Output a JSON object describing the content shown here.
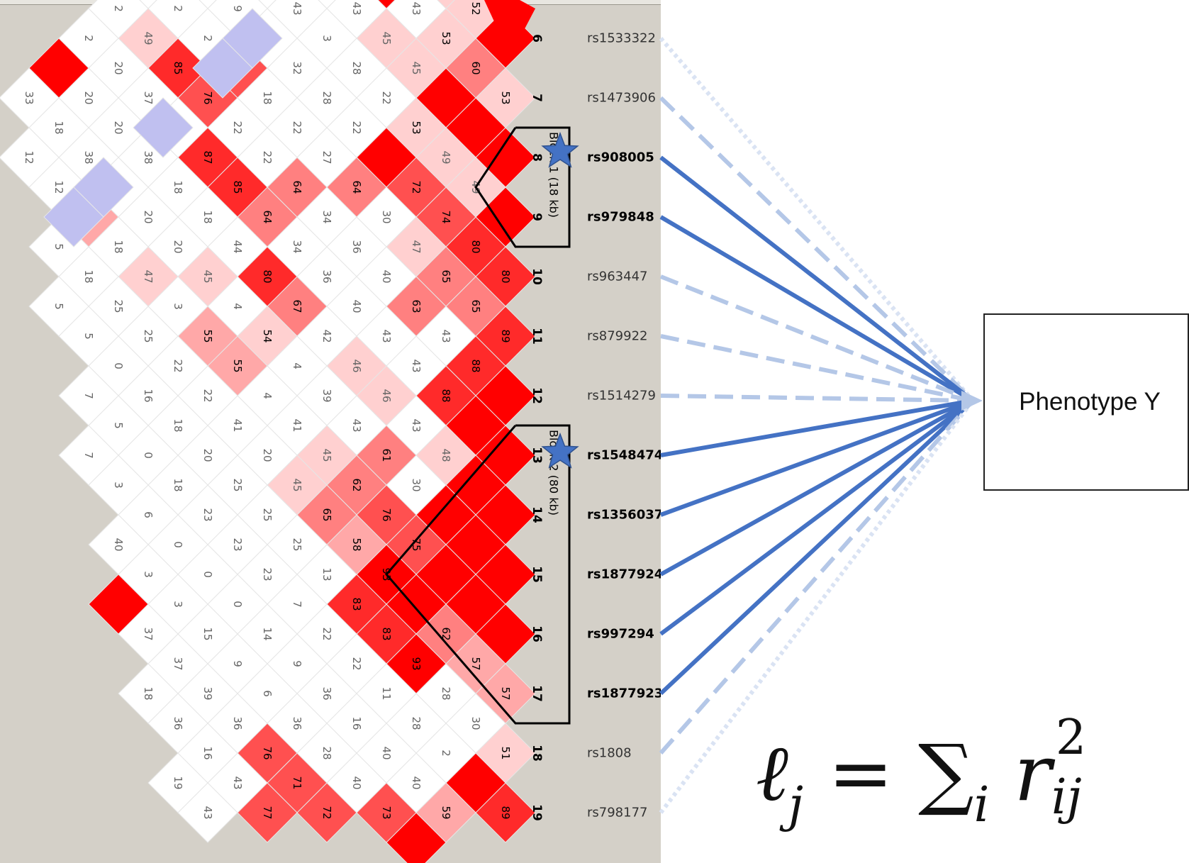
{
  "colors": {
    "strong_ld": "#ff0000",
    "low_ld": "#ffffff",
    "background": "#d4d0c8",
    "lavender": "#c0c0f0",
    "solid_line": "#4472c4",
    "light_line": "#b4c7e7",
    "lighter_line": "#dae3f3",
    "star": "#4472c4"
  },
  "phenotype": {
    "label": "Phenotype Y"
  },
  "formula": {
    "lhs": "ℓ",
    "lhs_sub": "j",
    "equals": "=",
    "sum": "∑",
    "sum_sub": "i",
    "r": "r",
    "r_sup": "2",
    "r_sub": "ij"
  },
  "blocks": [
    {
      "label": "Block 1 (18 kb)",
      "from": 8,
      "to": 9
    },
    {
      "label": "Block 2 (80 kb)",
      "from": 13,
      "to": 17
    }
  ],
  "snps": [
    {
      "index": "6",
      "rsid": "rs1533322",
      "bold": false,
      "line": "dotted"
    },
    {
      "index": "7",
      "rsid": "rs1473906",
      "bold": false,
      "line": "dashed"
    },
    {
      "index": "8",
      "rsid": "rs908005",
      "bold": true,
      "line": "solid",
      "star": true
    },
    {
      "index": "9",
      "rsid": "rs979848",
      "bold": true,
      "line": "solid"
    },
    {
      "index": "10",
      "rsid": "rs963447",
      "bold": false,
      "line": "dashed"
    },
    {
      "index": "11",
      "rsid": "rs879922",
      "bold": false,
      "line": "dashed"
    },
    {
      "index": "12",
      "rsid": "rs1514279",
      "bold": false,
      "line": "dashed"
    },
    {
      "index": "13",
      "rsid": "rs1548474",
      "bold": true,
      "line": "solid",
      "star": true
    },
    {
      "index": "14",
      "rsid": "rs1356037",
      "bold": true,
      "line": "solid"
    },
    {
      "index": "15",
      "rsid": "rs1877924",
      "bold": true,
      "line": "solid"
    },
    {
      "index": "16",
      "rsid": "rs997294",
      "bold": true,
      "line": "solid"
    },
    {
      "index": "17",
      "rsid": "rs1877923",
      "bold": true,
      "line": "solid"
    },
    {
      "index": "18",
      "rsid": "rs1808",
      "bold": false,
      "line": "dashed"
    },
    {
      "index": "19",
      "rsid": "rs798177",
      "bold": false,
      "line": "dotted"
    }
  ],
  "ld_cells": [
    {
      "k": 1,
      "r": 5.5,
      "v": "61",
      "shade": "light"
    },
    {
      "k": 2,
      "r": 5,
      "v": "52",
      "shade": "faint"
    },
    {
      "k": 2,
      "r": 6,
      "v": "60",
      "shade": "white"
    },
    {
      "k": 3,
      "r": 5.5,
      "v": "45",
      "shade": "faint"
    },
    {
      "k": 3,
      "r": 6.5,
      "v": "53",
      "shade": "white"
    },
    {
      "k": 3,
      "r": 7.5,
      "v": "53",
      "shade": "faint"
    },
    {
      "k": 3,
      "r": 8.5,
      "v": "49",
      "shade": "faint"
    },
    {
      "k": 4,
      "r": 5,
      "v": "43",
      "shade": "white"
    },
    {
      "k": 4,
      "r": 6,
      "v": "45",
      "shade": "faint"
    },
    {
      "k": 4,
      "r": 7,
      "v": "53",
      "shade": "white"
    },
    {
      "k": 4,
      "r": 8,
      "v": "",
      "shade": "red"
    },
    {
      "k": 4,
      "r": 9,
      "v": "49",
      "shade": "faint"
    },
    {
      "k": 4,
      "r": 10,
      "v": "74",
      "shade": "strong"
    },
    {
      "k": 4,
      "r": 11,
      "v": "65",
      "shade": "light"
    },
    {
      "k": 4,
      "r": 12,
      "v": "43",
      "shade": "white"
    },
    {
      "k": 4,
      "r": 13,
      "v": "48",
      "shade": "white"
    },
    {
      "k": 4,
      "r": 14,
      "v": "75",
      "shade": "strong"
    },
    {
      "k": 4,
      "r": 15,
      "v": "93",
      "shade": "red"
    },
    {
      "k": 4,
      "r": 16,
      "v": "11",
      "shade": "white"
    },
    {
      "k": 4,
      "r": 17,
      "v": "2",
      "shade": "white"
    },
    {
      "k": 4,
      "r": 18,
      "v": "73",
      "shade": "strong"
    }
  ],
  "notes": "ld values listed above are a subset; the full matrix is stored below",
  "ld_matrix": {
    "k1": [
      "5:61",
      "6:",
      "7:53",
      "8:",
      "9:",
      "10:80",
      "11:89",
      "12:",
      "13:",
      "14:",
      "15:",
      "16:",
      "17:57",
      "18:51",
      "19:89"
    ],
    "k2": [
      "5.5:52",
      "6.5:60",
      "7.5:",
      "8.5:49",
      "9.5:80",
      "10.5:65",
      "11.5:88",
      "12.5:",
      "13.5:",
      "14.5:",
      "15.5:",
      "16.5:57",
      "17.5:30",
      "18.5:"
    ],
    "k3": [
      "5:45",
      "6:53",
      "7:",
      "8:49",
      "9:74",
      "10:65",
      "11:43",
      "12:88",
      "13:48",
      "14:",
      "15:",
      "16:62",
      "17:28",
      "18:2",
      "19:59"
    ],
    "k4": [
      "5.5:43",
      "6.5:45",
      "7.5:53",
      "8.5:72",
      "9.5:47",
      "10.5:63",
      "11.5:43",
      "12.5:43",
      "13.5:30",
      "14.5:75",
      "15.5:",
      "16.5:93",
      "17.5:28",
      "18.5:40",
      "19.5:"
    ],
    "k5": [
      "5:",
      "6:45",
      "7:22",
      "8:",
      "9:30",
      "10:40",
      "11:43",
      "12:46",
      "13:61",
      "14:76",
      "15:93",
      "16:83",
      "17:11",
      "18:40",
      "19:73"
    ],
    "k6": [
      "4.5:",
      "5.5:43",
      "6.5:28",
      "7.5:22",
      "8.5:64",
      "9.5:36",
      "10.5:40",
      "11.5:46",
      "12.5:43",
      "13.5:62",
      "14.5:58",
      "15.5:83",
      "16.5:22",
      "17.5:16",
      "18.5:40"
    ],
    "k7": [
      "5:35",
      "6:3",
      "7:28",
      "8:27",
      "9:34",
      "10:36",
      "11:42",
      "12:39",
      "13:45",
      "14:65",
      "15:13",
      "16:22",
      "17:36",
      "18:28",
      "19:72"
    ],
    "k8": [
      "4.5:35",
      "5.5:43",
      "6.5:32",
      "7.5:22",
      "8.5:64",
      "9.5:34",
      "10.5:67",
      "11.5:4",
      "12.5:41",
      "13.5:45",
      "14.5:25",
      "15.5:7",
      "16.5:9",
      "17.5:36",
      "18.5:71"
    ],
    "k9": [
      "5:27",
      "6:3",
      "7:18",
      "8:22",
      "9:64",
      "10:80",
      "11:54",
      "12:4",
      "13:20",
      "14:25",
      "15:23",
      "16:14",
      "17:6",
      "18:76",
      "19:77"
    ],
    "k10": [
      "4.5:",
      "5.5:9",
      "6.5:76",
      "7.5:22",
      "8.5:85",
      "9.5:44",
      "10.5:4",
      "11.5:55",
      "12.5:41",
      "13.5:25",
      "14.5:23",
      "15.5:0",
      "16.5:9",
      "17.5:36",
      "18.5:43"
    ],
    "k11": [
      "5:30",
      "6:2",
      "7:76",
      "8:87",
      "9:18",
      "10:45",
      "11:55",
      "12:22",
      "13:20",
      "14:23",
      "15:0",
      "16:15",
      "17:39",
      "18:16",
      "19:43"
    ],
    "k12": [
      "4.5:",
      "5.5:2",
      "6.5:85",
      "7.5:22",
      "8.5:18",
      "9.5:20",
      "10.5:3",
      "11.5:22",
      "12.5:18",
      "13.5:18",
      "14.5:0",
      "15.5:3",
      "16.5:37",
      "17.5:36",
      "18.5:19"
    ],
    "k13": [
      "5:30",
      "6:49",
      "7:37",
      "8:38",
      "9:20",
      "10:47",
      "11:25",
      "12:16",
      "13:0",
      "14:6",
      "15:3",
      "16:37",
      "17:18"
    ],
    "k14": [
      "5.5:2",
      "6.5:20",
      "7.5:20",
      "8.5:20",
      "9.5:18",
      "10.5:25",
      "11.5:0",
      "12.5:5",
      "13.5:3",
      "14.5:40",
      "15.5:"
    ],
    "k15": [
      "6:2",
      "7:20",
      "8:38",
      "9:55",
      "10:18",
      "11:5",
      "12:7",
      "13:7"
    ],
    "k16": [
      "6.5:",
      "7.5:18",
      "8.5:12",
      "9.5:5",
      "10.5:5"
    ],
    "k17": [
      "7:33",
      "8:12"
    ]
  }
}
